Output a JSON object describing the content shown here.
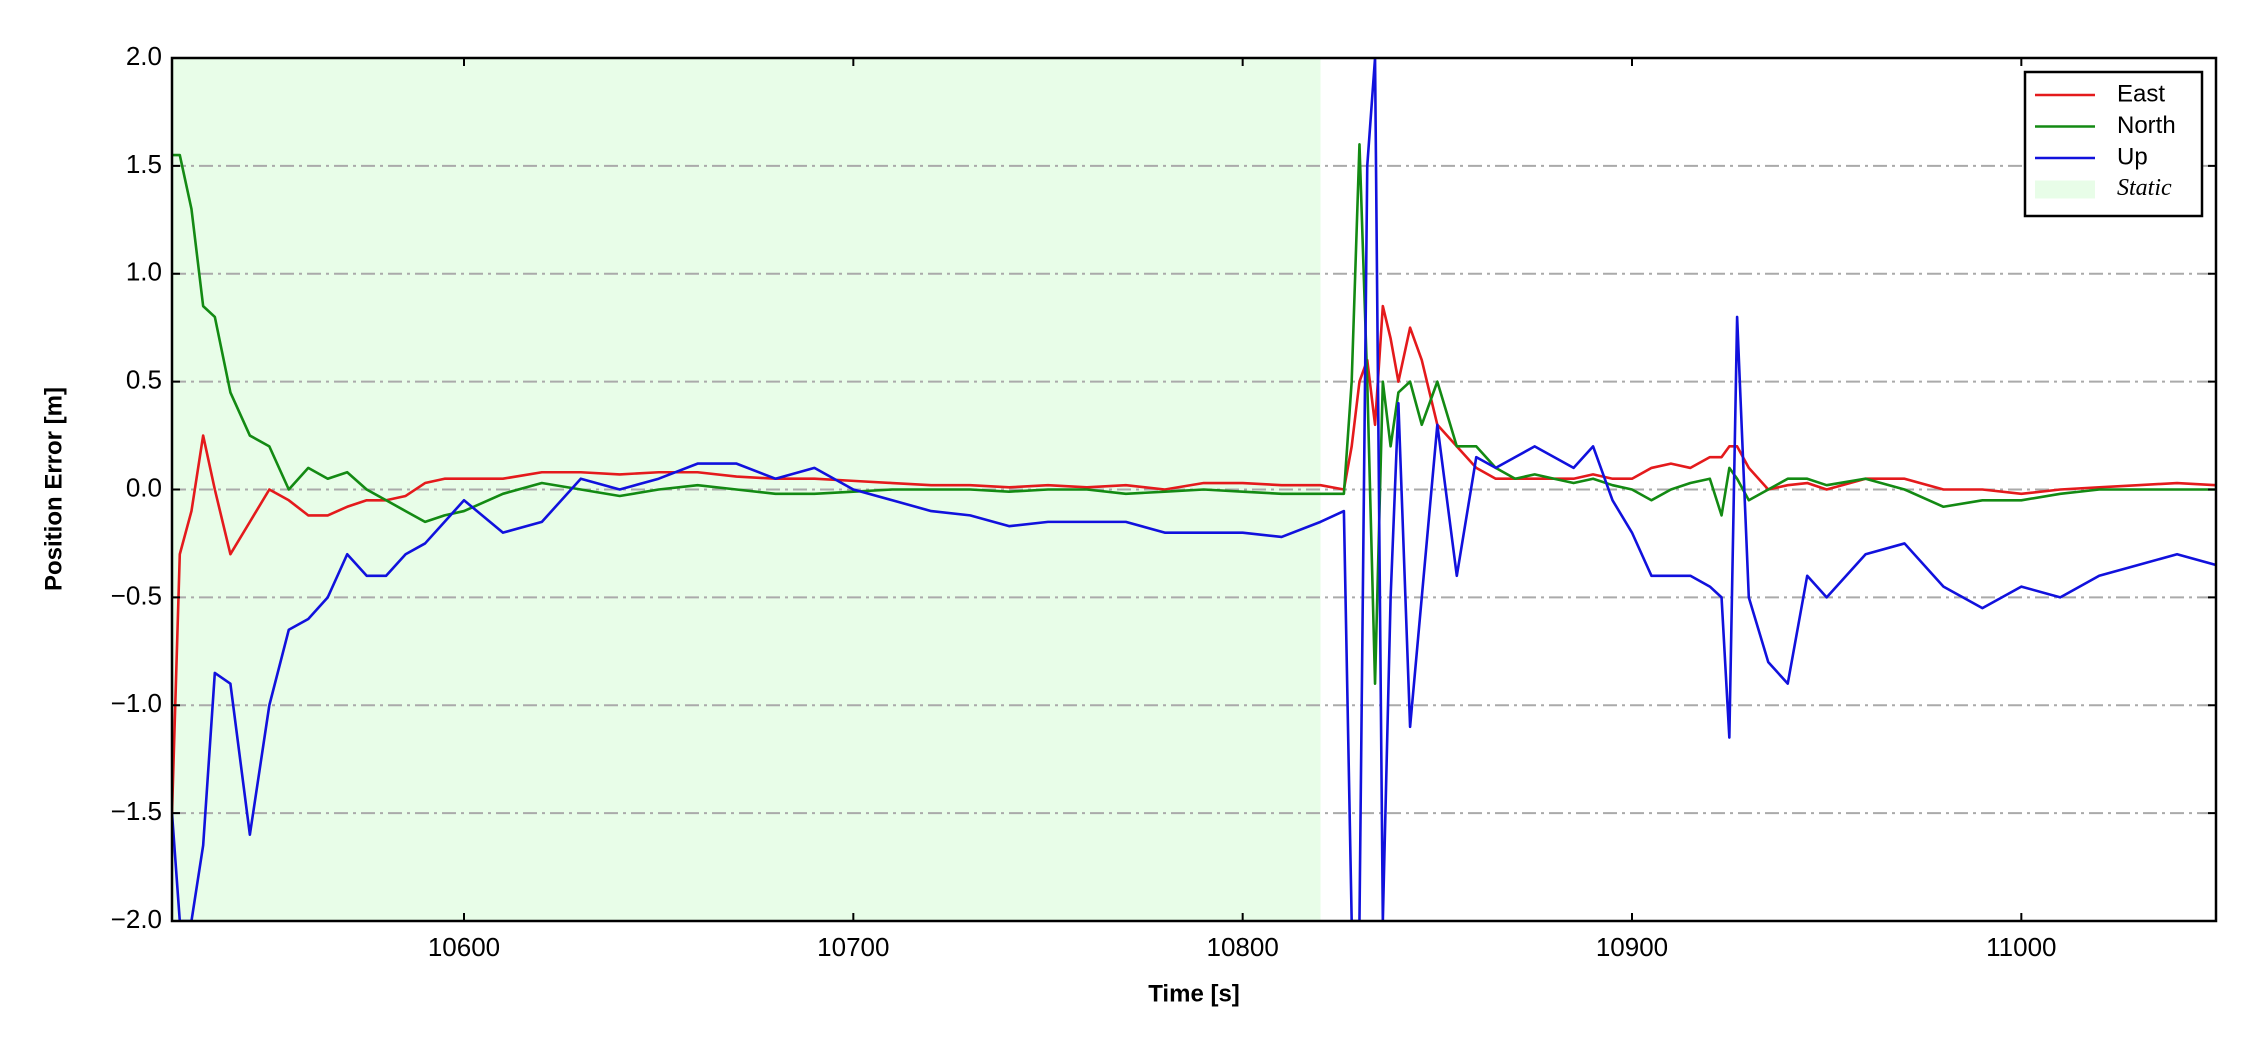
{
  "chart_data": {
    "type": "line",
    "xlabel": "Time [s]",
    "ylabel": "Position Error [m]",
    "x": [
      10525,
      10527,
      10530,
      10533,
      10536,
      10540,
      10545,
      10550,
      10555,
      10560,
      10565,
      10570,
      10575,
      10580,
      10585,
      10590,
      10595,
      10600,
      10610,
      10620,
      10630,
      10640,
      10650,
      10660,
      10670,
      10680,
      10690,
      10700,
      10710,
      10720,
      10730,
      10740,
      10750,
      10760,
      10770,
      10780,
      10790,
      10800,
      10810,
      10820,
      10826,
      10828,
      10830,
      10832,
      10834,
      10836,
      10838,
      10840,
      10843,
      10846,
      10850,
      10855,
      10860,
      10865,
      10870,
      10875,
      10880,
      10885,
      10890,
      10895,
      10900,
      10905,
      10910,
      10915,
      10920,
      10923,
      10925,
      10927,
      10930,
      10935,
      10940,
      10945,
      10950,
      10960,
      10970,
      10980,
      10990,
      11000,
      11010,
      11020,
      11030,
      11040,
      11050
    ],
    "series": [
      {
        "name": "East",
        "color": "#e41a1c",
        "values": [
          -1.5,
          -0.3,
          -0.1,
          0.25,
          0.0,
          -0.3,
          -0.15,
          0.0,
          -0.05,
          -0.12,
          -0.12,
          -0.08,
          -0.05,
          -0.05,
          -0.03,
          0.03,
          0.05,
          0.05,
          0.05,
          0.08,
          0.08,
          0.07,
          0.08,
          0.08,
          0.06,
          0.05,
          0.05,
          0.04,
          0.03,
          0.02,
          0.02,
          0.01,
          0.02,
          0.01,
          0.02,
          0.0,
          0.03,
          0.03,
          0.02,
          0.02,
          0.0,
          0.2,
          0.5,
          0.6,
          0.3,
          0.85,
          0.7,
          0.5,
          0.75,
          0.6,
          0.3,
          0.2,
          0.1,
          0.05,
          0.05,
          0.05,
          0.05,
          0.05,
          0.07,
          0.05,
          0.05,
          0.1,
          0.12,
          0.1,
          0.15,
          0.15,
          0.2,
          0.2,
          0.1,
          0.0,
          0.02,
          0.03,
          0.0,
          0.05,
          0.05,
          0.0,
          0.0,
          -0.02,
          0.0,
          0.01,
          0.02,
          0.03,
          0.02
        ]
      },
      {
        "name": "North",
        "color": "#138a13",
        "values": [
          1.55,
          1.55,
          1.3,
          0.85,
          0.8,
          0.45,
          0.25,
          0.2,
          0.0,
          0.1,
          0.05,
          0.08,
          0.0,
          -0.05,
          -0.1,
          -0.15,
          -0.12,
          -0.1,
          -0.02,
          0.03,
          0.0,
          -0.03,
          0.0,
          0.02,
          0.0,
          -0.02,
          -0.02,
          -0.01,
          0.0,
          0.0,
          0.0,
          -0.01,
          0.0,
          0.0,
          -0.02,
          -0.01,
          0.0,
          -0.01,
          -0.02,
          -0.02,
          -0.02,
          0.5,
          1.6,
          0.5,
          -0.9,
          0.5,
          0.2,
          0.45,
          0.5,
          0.3,
          0.5,
          0.2,
          0.2,
          0.1,
          0.05,
          0.07,
          0.05,
          0.03,
          0.05,
          0.02,
          0.0,
          -0.05,
          0.0,
          0.03,
          0.05,
          -0.12,
          0.1,
          0.05,
          -0.05,
          0.0,
          0.05,
          0.05,
          0.02,
          0.05,
          0.0,
          -0.08,
          -0.05,
          -0.05,
          -0.02,
          0.0,
          0.0,
          0.0,
          0.0
        ]
      },
      {
        "name": "Up",
        "color": "#1111dd",
        "values": [
          -1.5,
          -2.0,
          -2.0,
          -1.65,
          -0.85,
          -0.9,
          -1.6,
          -1.0,
          -0.65,
          -0.6,
          -0.5,
          -0.3,
          -0.4,
          -0.4,
          -0.3,
          -0.25,
          -0.15,
          -0.05,
          -0.2,
          -0.15,
          0.05,
          0.0,
          0.05,
          0.12,
          0.12,
          0.05,
          0.1,
          0.0,
          -0.05,
          -0.1,
          -0.12,
          -0.17,
          -0.15,
          -0.15,
          -0.15,
          -0.2,
          -0.2,
          -0.2,
          -0.22,
          -0.15,
          -0.1,
          -2.0,
          -2.0,
          1.5,
          2.0,
          -2.0,
          -0.5,
          0.4,
          -1.1,
          -0.5,
          0.3,
          -0.4,
          0.15,
          0.1,
          0.15,
          0.2,
          0.15,
          0.1,
          0.2,
          -0.05,
          -0.2,
          -0.4,
          -0.4,
          -0.4,
          -0.45,
          -0.5,
          -1.15,
          0.8,
          -0.5,
          -0.8,
          -0.9,
          -0.4,
          -0.5,
          -0.3,
          -0.25,
          -0.45,
          -0.55,
          -0.45,
          -0.5,
          -0.4,
          -0.35,
          -0.3,
          -0.35
        ]
      }
    ],
    "static_region": {
      "label": "Static",
      "xlim": [
        10525,
        10820
      ],
      "color": "#e8fde8"
    },
    "xlim": [
      10525,
      11050
    ],
    "ylim": [
      -2,
      2
    ],
    "xticks": [
      10600,
      10700,
      10800,
      10900,
      11000
    ],
    "yticks": [
      {
        "value": -2,
        "label": "−2.0"
      },
      {
        "value": -1.5,
        "label": "−1.5"
      },
      {
        "value": -1,
        "label": "−1.0"
      },
      {
        "value": -0.5,
        "label": "−0.5"
      },
      {
        "value": 0,
        "label": "0.0"
      },
      {
        "value": 0.5,
        "label": "0.5"
      },
      {
        "value": 1,
        "label": "1.0"
      },
      {
        "value": 1.5,
        "label": "1.5"
      },
      {
        "value": 2,
        "label": "2.0"
      }
    ],
    "grid": true,
    "legend": "upper right"
  }
}
